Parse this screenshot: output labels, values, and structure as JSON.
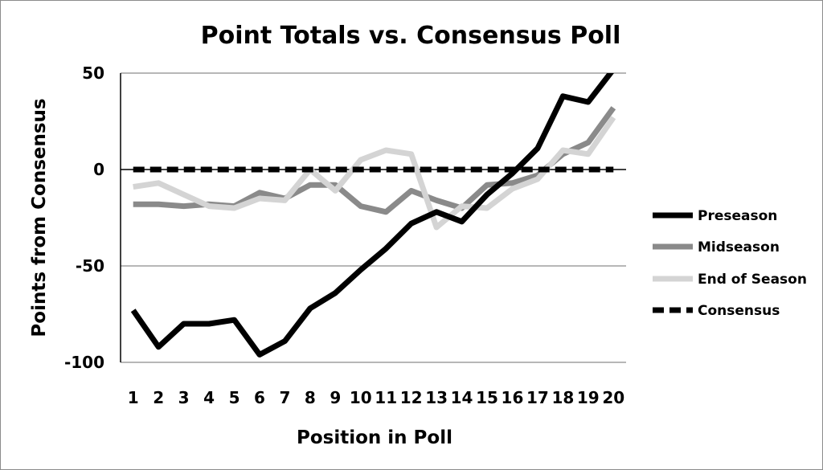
{
  "chart_data": {
    "type": "line",
    "title": "Point Totals vs. Consensus Poll",
    "xlabel": "Position in Poll",
    "ylabel": "Points from Consensus",
    "categories": [
      "1",
      "2",
      "3",
      "4",
      "5",
      "6",
      "7",
      "8",
      "9",
      "10",
      "11",
      "12",
      "13",
      "14",
      "15",
      "16",
      "17",
      "18",
      "19",
      "20"
    ],
    "ylim": [
      -100,
      50
    ],
    "yticks": [
      50,
      0,
      -50,
      -100
    ],
    "grid": true,
    "legend_position": "right",
    "series": [
      {
        "name": "Preseason",
        "color": "#000000",
        "dash": false,
        "values": [
          -73,
          -92,
          -80,
          -80,
          -78,
          -96,
          -89,
          -72,
          -64,
          -52,
          -41,
          -28,
          -22,
          -27,
          -13,
          -2,
          11,
          38,
          35,
          52
        ]
      },
      {
        "name": "Midseason",
        "color": "#8a8a8a",
        "dash": false,
        "values": [
          -18,
          -18,
          -19,
          -18,
          -19,
          -12,
          -15,
          -8,
          -8,
          -19,
          -22,
          -11,
          -16,
          -20,
          -8,
          -7,
          -3,
          8,
          14,
          32
        ]
      },
      {
        "name": "End of Season",
        "color": "#d4d4d4",
        "dash": false,
        "values": [
          -9,
          -7,
          -13,
          -19,
          -20,
          -15,
          -16,
          0,
          -11,
          5,
          10,
          8,
          -30,
          -19,
          -20,
          -10,
          -5,
          10,
          8,
          27
        ]
      },
      {
        "name": "Consensus",
        "color": "#000000",
        "dash": true,
        "values": [
          0,
          0,
          0,
          0,
          0,
          0,
          0,
          0,
          0,
          0,
          0,
          0,
          0,
          0,
          0,
          0,
          0,
          0,
          0,
          0
        ]
      }
    ]
  }
}
